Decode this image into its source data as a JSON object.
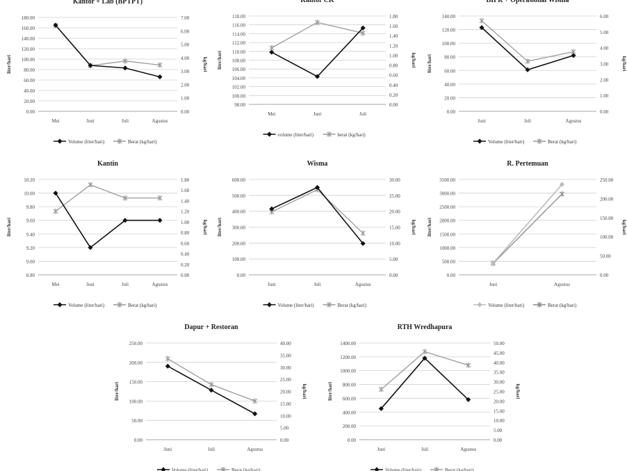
{
  "chart_data": [
    {
      "type": "line",
      "title": "Kantor + Lab (BPTPT)",
      "ylabel_left": "liter/hari",
      "ylabel_right": "kg/hari",
      "categories": [
        "Mei",
        "Juni",
        "Juli",
        "Agustus"
      ],
      "y_left_ticks": [
        "0.00",
        "20.00",
        "40.00",
        "60.00",
        "80.00",
        "100.00",
        "120.00",
        "140.00",
        "160.00",
        "180.00"
      ],
      "y_right_ticks": [
        "0.00",
        "1.00",
        "2.00",
        "3.00",
        "4.00",
        "5.00",
        "6.00",
        "7.00"
      ],
      "ylim_left": [
        0,
        180
      ],
      "ylim_right": [
        0,
        7
      ],
      "series": [
        {
          "name": "Volume (liter/hari)",
          "axis": "left",
          "color": "#111111",
          "values": [
            165,
            88,
            83,
            66
          ]
        },
        {
          "name": "Berat (kg/hari)",
          "axis": "right",
          "color": "#999999",
          "values": [
            6.4,
            3.4,
            3.75,
            3.45
          ]
        }
      ]
    },
    {
      "type": "line",
      "title": "Kantor CK",
      "ylabel_left": "liter/hari",
      "ylabel_right": "kg/hari",
      "categories": [
        "Mei",
        "Juni",
        "Juli"
      ],
      "y_left_ticks": [
        "98.00",
        "100.00",
        "102.00",
        "104.00",
        "106.00",
        "108.00",
        "110.00",
        "112.00",
        "114.00",
        "116.00",
        "118.00"
      ],
      "y_right_ticks": [
        "0.00",
        "0.20",
        "0.40",
        "0.60",
        "0.80",
        "1.00",
        "1.20",
        "1.40",
        "1.60",
        "1.80"
      ],
      "ylim_left": [
        98,
        118
      ],
      "ylim_right": [
        0,
        1.8
      ],
      "series": [
        {
          "name": "volume (liter/hari)",
          "axis": "left",
          "color": "#111111",
          "values": [
            109.8,
            104.3,
            115.3
          ]
        },
        {
          "name": "berat (kg/hari)",
          "axis": "right",
          "color": "#999999",
          "values": [
            1.15,
            1.67,
            1.45
          ]
        }
      ]
    },
    {
      "type": "line",
      "title": "BIPR + Operasional Wisma",
      "ylabel_left": "liter/hari",
      "ylabel_right": "kg/hari",
      "categories": [
        "Juni",
        "Juli",
        "Agustus"
      ],
      "y_left_ticks": [
        "0.00",
        "20.00",
        "40.00",
        "60.00",
        "80.00",
        "100.00",
        "120.00",
        "140.00"
      ],
      "y_right_ticks": [
        "0.00",
        "1.00",
        "2.00",
        "3.00",
        "4.00",
        "5.00",
        "6.00"
      ],
      "ylim_left": [
        0,
        140
      ],
      "ylim_right": [
        0,
        6
      ],
      "series": [
        {
          "name": "Volume (liter/hari)",
          "axis": "left",
          "color": "#111111",
          "values": [
            123,
            61,
            82
          ]
        },
        {
          "name": "Berat (kg/hari)",
          "axis": "right",
          "color": "#999999",
          "values": [
            5.7,
            3.15,
            3.75
          ]
        }
      ]
    },
    {
      "type": "line",
      "title": "Kantin",
      "ylabel_left": "liter/hari",
      "ylabel_right": "kg/hari",
      "categories": [
        "Mei",
        "Juni",
        "Juli",
        "Agustus"
      ],
      "y_left_ticks": [
        "8.80",
        "9.00",
        "9.20",
        "9.40",
        "9.60",
        "9.80",
        "10.00",
        "10.20"
      ],
      "y_right_ticks": [
        "0.00",
        "0.20",
        "0.40",
        "0.60",
        "0.80",
        "1.00",
        "1.20",
        "1.40",
        "1.60",
        "1.80"
      ],
      "ylim_left": [
        8.8,
        10.2
      ],
      "ylim_right": [
        0,
        1.8
      ],
      "series": [
        {
          "name": "Volume (liter/hari)",
          "axis": "left",
          "color": "#111111",
          "values": [
            10.0,
            9.2,
            9.6,
            9.6
          ]
        },
        {
          "name": "Berat (kg/hari)",
          "axis": "right",
          "color": "#999999",
          "values": [
            1.2,
            1.7,
            1.45,
            1.45
          ]
        }
      ]
    },
    {
      "type": "line",
      "title": "Wisma",
      "ylabel_left": "liter/hari",
      "ylabel_right": "kg/hari",
      "categories": [
        "Juni",
        "Juli",
        "Agustus"
      ],
      "y_left_ticks": [
        "0.00",
        "100.00",
        "200.00",
        "300.00",
        "400.00",
        "500.00",
        "600.00"
      ],
      "y_right_ticks": [
        "0.00",
        "5.00",
        "10.00",
        "15.00",
        "20.00",
        "25.00",
        "30.00"
      ],
      "ylim_left": [
        0,
        600
      ],
      "ylim_right": [
        0,
        30
      ],
      "series": [
        {
          "name": "Volume (liter/hari)",
          "axis": "left",
          "color": "#111111",
          "values": [
            415,
            550,
            197
          ]
        },
        {
          "name": "Berat (kg/hari)",
          "axis": "right",
          "color": "#999999",
          "values": [
            19.8,
            26.8,
            13.1
          ]
        }
      ]
    },
    {
      "type": "line",
      "title": "R. Pertemuan",
      "ylabel_left": "liter/hari",
      "ylabel_right": "kg/hari",
      "categories": [
        "Juni",
        "Agustus"
      ],
      "y_left_ticks": [
        "0.00",
        "500.00",
        "1000.00",
        "1500.00",
        "2000.00",
        "2500.00",
        "3000.00",
        "3500.00"
      ],
      "y_right_ticks": [
        "0.00",
        "50.00",
        "100.00",
        "150.00",
        "200.00",
        "250.00"
      ],
      "ylim_left": [
        0,
        3500
      ],
      "ylim_right": [
        0,
        250
      ],
      "series": [
        {
          "name": "Volume (liter/hari)",
          "axis": "left",
          "color": "#bbbbbb",
          "values": [
            430,
            3320
          ]
        },
        {
          "name": "Berat (kg/hari)",
          "axis": "right",
          "color": "#888888",
          "values": [
            30,
            212
          ]
        }
      ]
    },
    {
      "type": "line",
      "title": "Dapur + Restoran",
      "ylabel_left": "liter/hari",
      "ylabel_right": "kg/hari",
      "categories": [
        "Juni",
        "Juli",
        "Agustus"
      ],
      "y_left_ticks": [
        "0.00",
        "50.00",
        "100.00",
        "150.00",
        "200.00",
        "250.00"
      ],
      "y_right_ticks": [
        "0.00",
        "5.00",
        "10.00",
        "15.00",
        "20.00",
        "25.00",
        "30.00",
        "35.00",
        "40.00"
      ],
      "ylim_left": [
        0,
        250
      ],
      "ylim_right": [
        0,
        40
      ],
      "series": [
        {
          "name": "Volume (liter/hari)",
          "axis": "left",
          "color": "#111111",
          "values": [
            190,
            128,
            67
          ]
        },
        {
          "name": "Berat (kg/hari)",
          "axis": "right",
          "color": "#999999",
          "values": [
            33.5,
            22.8,
            16.0
          ]
        }
      ]
    },
    {
      "type": "line",
      "title": "RTH Wredhapura",
      "ylabel_left": "liter/hari",
      "ylabel_right": "kg/hari",
      "categories": [
        "Juni",
        "Juli",
        "Agustus"
      ],
      "y_left_ticks": [
        "0.00",
        "200.00",
        "400.00",
        "600.00",
        "800.00",
        "1000.00",
        "1200.00",
        "1400.00"
      ],
      "y_right_ticks": [
        "0.00",
        "5.00",
        "10.00",
        "15.00",
        "20.00",
        "25.00",
        "30.00",
        "35.00",
        "40.00",
        "45.00",
        "50.00"
      ],
      "ylim_left": [
        0,
        1400
      ],
      "ylim_right": [
        0,
        50
      ],
      "series": [
        {
          "name": "Volume (liter/hari)",
          "axis": "left",
          "color": "#111111",
          "values": [
            450,
            1180,
            580
          ]
        },
        {
          "name": "Berat (kg/hari)",
          "axis": "right",
          "color": "#999999",
          "values": [
            26,
            45.5,
            38.5
          ]
        }
      ]
    }
  ]
}
